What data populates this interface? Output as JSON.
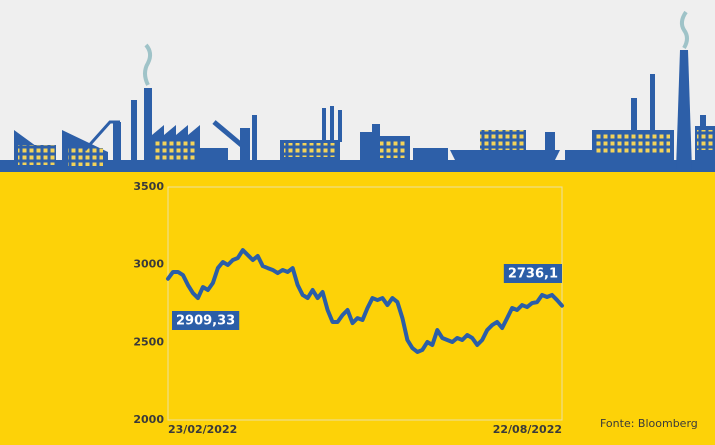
{
  "chart_data": {
    "type": "line",
    "source": "Fonte: Bloomberg",
    "categories": [
      "23/02/2022",
      null,
      null,
      null,
      null,
      null,
      null,
      null,
      null,
      null,
      null,
      null,
      null,
      null,
      null,
      null,
      null,
      null,
      null,
      null,
      null,
      null,
      null,
      null,
      null,
      null,
      null,
      null,
      null,
      null,
      null,
      null,
      null,
      null,
      null,
      null,
      null,
      null,
      null,
      null,
      null,
      null,
      null,
      null,
      null,
      null,
      null,
      null,
      null,
      null,
      null,
      null,
      null,
      null,
      null,
      null,
      null,
      null,
      null,
      null,
      null,
      null,
      null,
      null,
      null,
      null,
      null,
      null,
      null,
      null,
      null,
      null,
      null,
      null,
      null,
      null,
      null,
      null,
      null,
      "22/08/2022"
    ],
    "series": [
      {
        "color": "#2b5ea7",
        "values": [
          2909.33,
          2953,
          2953,
          2933,
          2869,
          2817,
          2785,
          2856,
          2837,
          2882,
          2978,
          3017,
          2998,
          3030,
          3043,
          3094,
          3062,
          3030,
          3056,
          2991,
          2978,
          2966,
          2946,
          2966,
          2953,
          2978,
          2869,
          2805,
          2785,
          2837,
          2785,
          2824,
          2708,
          2631,
          2631,
          2676,
          2708,
          2624,
          2656,
          2644,
          2721,
          2785,
          2772,
          2785,
          2740,
          2785,
          2759,
          2656,
          2515,
          2463,
          2438,
          2451,
          2502,
          2483,
          2579,
          2528,
          2515,
          2502,
          2528,
          2515,
          2547,
          2528,
          2483,
          2515,
          2579,
          2611,
          2631,
          2592,
          2656,
          2721,
          2708,
          2740,
          2727,
          2753,
          2759,
          2805,
          2792,
          2805,
          2772,
          2736.1
        ],
        "value_labels": [
          "2909,33",
          null,
          null,
          null,
          null,
          null,
          null,
          null,
          null,
          null,
          null,
          null,
          null,
          null,
          null,
          null,
          null,
          null,
          null,
          null,
          null,
          null,
          null,
          null,
          null,
          null,
          null,
          null,
          null,
          null,
          null,
          null,
          null,
          null,
          null,
          null,
          null,
          null,
          null,
          null,
          null,
          null,
          null,
          null,
          null,
          null,
          null,
          null,
          null,
          null,
          null,
          null,
          null,
          null,
          null,
          null,
          null,
          null,
          null,
          null,
          null,
          null,
          null,
          null,
          null,
          null,
          null,
          null,
          null,
          null,
          null,
          null,
          null,
          null,
          null,
          null,
          null,
          null,
          null,
          "2736,1"
        ]
      }
    ],
    "ylim": [
      2000,
      3500
    ],
    "yticks": [
      2000,
      2500,
      3000,
      3500
    ],
    "grid": false
  }
}
